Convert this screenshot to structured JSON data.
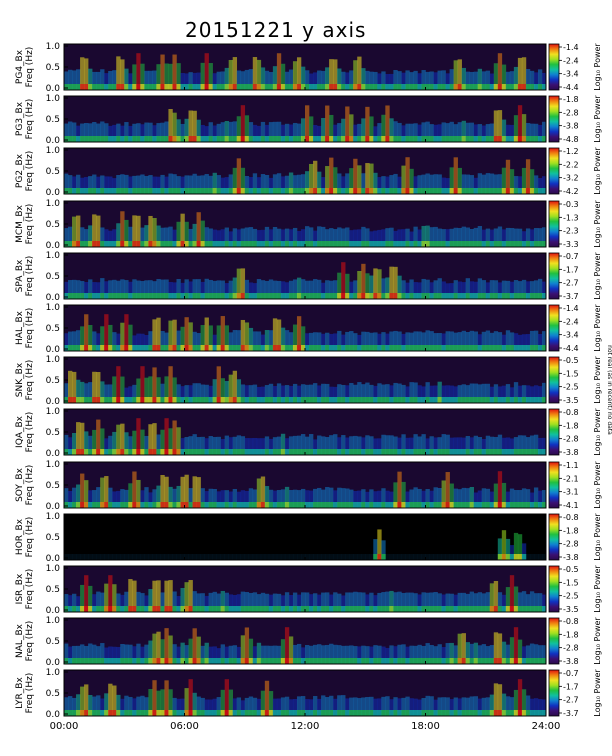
{
  "title": "20151221 y axis",
  "side_note": "not real (as in recent) no data",
  "chart_data": {
    "type": "heatmap",
    "title": "20151221 y axis",
    "x_tick_labels": [
      "00:00",
      "06:00",
      "12:00",
      "18:00",
      "24:00"
    ],
    "x_range_hours": [
      0,
      24
    ],
    "y_range_hz": [
      0,
      1.0
    ],
    "y_tick_labels": [
      "0.0",
      "0.5",
      "1.0"
    ],
    "colorbar_title": "Log₁₀ Power",
    "stations": [
      {
        "ylabel": "PG4_Bx\nFreq (Hz)",
        "colorbar": [
          "-1.4",
          "-2.4",
          "-3.4",
          "-4.4"
        ]
      },
      {
        "ylabel": "PG3_Bx\nFreq (Hz)",
        "colorbar": [
          "-1.8",
          "-2.8",
          "-3.8",
          "-4.8"
        ]
      },
      {
        "ylabel": "PG2_Bx\nFreq (Hz)",
        "colorbar": [
          "-1.2",
          "-2.2",
          "-3.2",
          "-4.2"
        ]
      },
      {
        "ylabel": "MCM_Bx\nFreq (Hz)",
        "colorbar": [
          "-0.3",
          "-1.3",
          "-2.3",
          "-3.3"
        ]
      },
      {
        "ylabel": "SPA_Bx\nFreq (Hz)",
        "colorbar": [
          "-0.7",
          "-1.7",
          "-2.7",
          "-3.7"
        ]
      },
      {
        "ylabel": "HAL_Bx\nFreq (Hz)",
        "colorbar": [
          "-1.4",
          "-2.4",
          "-3.4",
          "-4.4"
        ]
      },
      {
        "ylabel": "SNK_Bx\nFreq (Hz)",
        "colorbar": [
          "-0.5",
          "-1.5",
          "-2.5",
          "-3.5"
        ]
      },
      {
        "ylabel": "IQA_Bx\nFreq (Hz)",
        "colorbar": [
          "-0.8",
          "-1.8",
          "-2.8",
          "-3.8"
        ]
      },
      {
        "ylabel": "SOY_Bx\nFreq (Hz)",
        "colorbar": [
          "-1.1",
          "-2.1",
          "-3.1",
          "-4.1"
        ]
      },
      {
        "ylabel": "HOR_Bx\nFreq (Hz)",
        "colorbar": [
          "-0.8",
          "-1.8",
          "-2.8",
          "-3.8"
        ]
      },
      {
        "ylabel": "ISR_Bx\nFreq (Hz)",
        "colorbar": [
          "-0.5",
          "-1.5",
          "-2.5",
          "-3.5"
        ]
      },
      {
        "ylabel": "NAL_Bx\nFreq (Hz)",
        "colorbar": [
          "-0.8",
          "-1.8",
          "-2.8",
          "-3.8"
        ]
      },
      {
        "ylabel": "LYR_Bx\nFreq (Hz)",
        "colorbar": [
          "-0.7",
          "-1.7",
          "-2.7",
          "-3.7"
        ]
      }
    ],
    "colors": {
      "background": "#ffffff",
      "low": "#000000",
      "colormap": [
        "#2a0a4a",
        "#3a1070",
        "#1030c0",
        "#1080d0",
        "#10c0a0",
        "#20c040",
        "#a0e020",
        "#f0e020",
        "#f08010",
        "#e01010"
      ]
    }
  }
}
